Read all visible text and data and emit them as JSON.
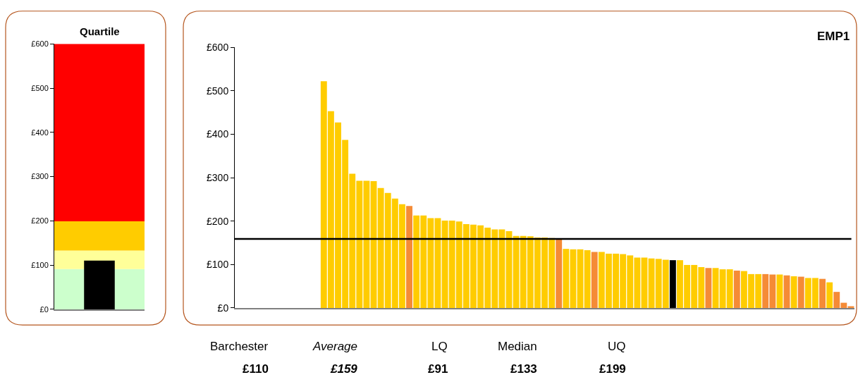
{
  "chart_data": [
    {
      "type": "bar",
      "title": "Quartile",
      "categories": [
        null
      ],
      "values": [
        110
      ],
      "colors": [
        "#000000"
      ],
      "ylim": [
        0,
        600
      ],
      "yticks": [
        {
          "value": 0,
          "label": "£0"
        },
        {
          "value": 100,
          "label": "£100"
        },
        {
          "value": 200,
          "label": "£200"
        },
        {
          "value": 300,
          "label": "£300"
        },
        {
          "value": 400,
          "label": "£400"
        },
        {
          "value": 500,
          "label": "£500"
        },
        {
          "value": 600,
          "label": "£600"
        }
      ],
      "bands": [
        {
          "axis": "y",
          "from": 0,
          "to": 91,
          "color": "#ccffcc"
        },
        {
          "axis": "y",
          "from": 91,
          "to": 133,
          "color": "#ffff99"
        },
        {
          "axis": "y",
          "from": 133,
          "to": 199,
          "color": "#ffcc00"
        },
        {
          "axis": "y",
          "from": 199,
          "to": 600,
          "color": "#ff0000"
        }
      ],
      "grid": false,
      "tick_labels": "y"
    },
    {
      "type": "bar",
      "title": "EMP1",
      "categories": [
        null,
        null,
        null,
        null,
        null,
        null,
        null,
        null,
        null,
        null,
        null,
        null,
        null,
        null,
        null,
        null,
        null,
        null,
        null,
        null,
        null,
        null,
        null,
        null,
        null,
        null,
        null,
        null,
        null,
        null,
        null,
        null,
        null,
        null,
        null,
        null,
        null,
        null,
        null,
        null,
        null,
        null,
        null,
        null,
        null,
        null,
        null,
        null,
        null,
        null,
        null,
        null,
        null,
        null,
        null,
        null,
        null,
        null,
        null,
        null,
        null,
        null,
        null,
        null,
        null,
        null,
        null,
        null,
        null,
        null,
        null,
        null,
        null,
        null,
        null,
        null,
        null,
        null,
        null,
        null,
        null,
        null,
        null,
        null,
        null,
        null,
        null
      ],
      "values": [
        null,
        null,
        null,
        null,
        null,
        null,
        null,
        null,
        null,
        null,
        null,
        null,
        522,
        453,
        427,
        387,
        309,
        293,
        293,
        292,
        276,
        265,
        252,
        239,
        235,
        213,
        213,
        207,
        207,
        201,
        201,
        199,
        193,
        192,
        190,
        185,
        181,
        181,
        177,
        166,
        166,
        165,
        162,
        162,
        161,
        160,
        136,
        135,
        135,
        133,
        129,
        129,
        125,
        125,
        124,
        121,
        116,
        116,
        114,
        113,
        111,
        110,
        110,
        99,
        99,
        94,
        92,
        92,
        89,
        89,
        86,
        85,
        78,
        78,
        78,
        77,
        77,
        75,
        73,
        72,
        69,
        69,
        67,
        59,
        37,
        12,
        4
      ],
      "colors": [
        "#ffcc00",
        "#ffcc00",
        "#ffcc00",
        "#ffcc00",
        "#ffcc00",
        "#ffcc00",
        "#ffcc00",
        "#ffcc00",
        "#ffcc00",
        "#ffcc00",
        "#ffcc00",
        "#ffcc00",
        "#ffcc00",
        "#ffcc00",
        "#ffcc00",
        "#ffcc00",
        "#ffcc00",
        "#ffcc00",
        "#ffcc00",
        "#ffcc00",
        "#ffcc00",
        "#ffcc00",
        "#ffcc00",
        "#ffcc00",
        "#f58b36",
        "#ffcc00",
        "#ffcc00",
        "#ffcc00",
        "#ffcc00",
        "#ffcc00",
        "#ffcc00",
        "#ffcc00",
        "#ffcc00",
        "#ffcc00",
        "#ffcc00",
        "#ffcc00",
        "#ffcc00",
        "#ffcc00",
        "#ffcc00",
        "#ffcc00",
        "#ffcc00",
        "#ffcc00",
        "#ffcc00",
        "#ffcc00",
        "#ffcc00",
        "#f58b36",
        "#ffcc00",
        "#ffcc00",
        "#ffcc00",
        "#ffcc00",
        "#f58b36",
        "#ffcc00",
        "#ffcc00",
        "#ffcc00",
        "#ffcc00",
        "#ffcc00",
        "#ffcc00",
        "#ffcc00",
        "#ffcc00",
        "#ffcc00",
        "#ffcc00",
        "#000000",
        "#ffcc00",
        "#ffcc00",
        "#ffcc00",
        "#ffcc00",
        "#f58b36",
        "#ffcc00",
        "#ffcc00",
        "#ffcc00",
        "#f58b36",
        "#ffcc00",
        "#ffcc00",
        "#ffcc00",
        "#f58b36",
        "#f58b36",
        "#ffcc00",
        "#f58b36",
        "#ffcc00",
        "#f58b36",
        "#ffcc00",
        "#ffcc00",
        "#f58b36",
        "#ffcc00",
        "#f58b36",
        "#f58b36",
        "#f58b36"
      ],
      "ylim": [
        0,
        600
      ],
      "yticks": [
        {
          "value": 0,
          "label": "£0"
        },
        {
          "value": 100,
          "label": "£100"
        },
        {
          "value": 200,
          "label": "£200"
        },
        {
          "value": 300,
          "label": "£300"
        },
        {
          "value": 400,
          "label": "£400"
        },
        {
          "value": 500,
          "label": "£500"
        },
        {
          "value": 600,
          "label": "£600"
        }
      ],
      "ref_lines": [
        {
          "axis": "y",
          "value": 159,
          "color": "#000000"
        }
      ],
      "annotations": [
        "Barchester",
        "Average",
        "LQ",
        "Median",
        "UQ",
        "£110",
        "£159",
        "£91",
        "£133",
        "£199"
      ],
      "grid": false,
      "tick_labels": "y"
    }
  ]
}
